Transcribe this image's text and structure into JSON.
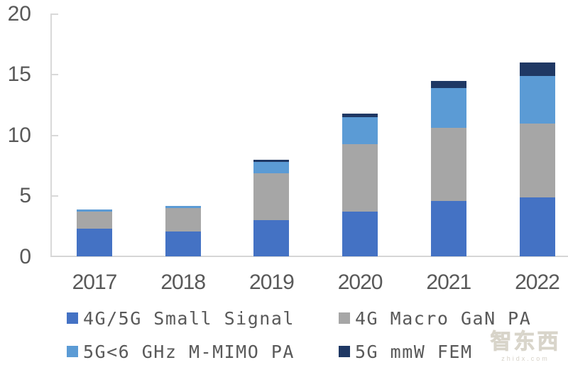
{
  "watermark": {
    "text": "智东西",
    "subtext": "zhidx.com"
  },
  "chart_data": {
    "type": "bar",
    "stacked": true,
    "title": "",
    "xlabel": "",
    "ylabel": "",
    "grid": false,
    "legend_position": "bottom",
    "ylim": [
      0,
      20
    ],
    "yticks": [
      0,
      5,
      10,
      15,
      20
    ],
    "categories": [
      "2017",
      "2018",
      "2019",
      "2020",
      "2021",
      "2022"
    ],
    "series": [
      {
        "name": "4G/5G Small Signal",
        "color": "#4472C4",
        "values": [
          2.3,
          2.1,
          3.0,
          3.7,
          4.6,
          4.9
        ]
      },
      {
        "name": "4G Macro GaN PA",
        "color": "#A6A6A6",
        "values": [
          1.4,
          1.9,
          3.9,
          5.6,
          6.0,
          6.1
        ]
      },
      {
        "name": "5G<6 GHz M-MIMO PA",
        "color": "#5B9BD5",
        "values": [
          0.2,
          0.2,
          0.9,
          2.2,
          3.3,
          3.9
        ]
      },
      {
        "name": "5G mmW FEM",
        "color": "#1F3864",
        "values": [
          0.0,
          0.0,
          0.2,
          0.3,
          0.6,
          1.1
        ]
      }
    ],
    "axis_color": "#D9D9D9",
    "label_color": "#595959"
  }
}
